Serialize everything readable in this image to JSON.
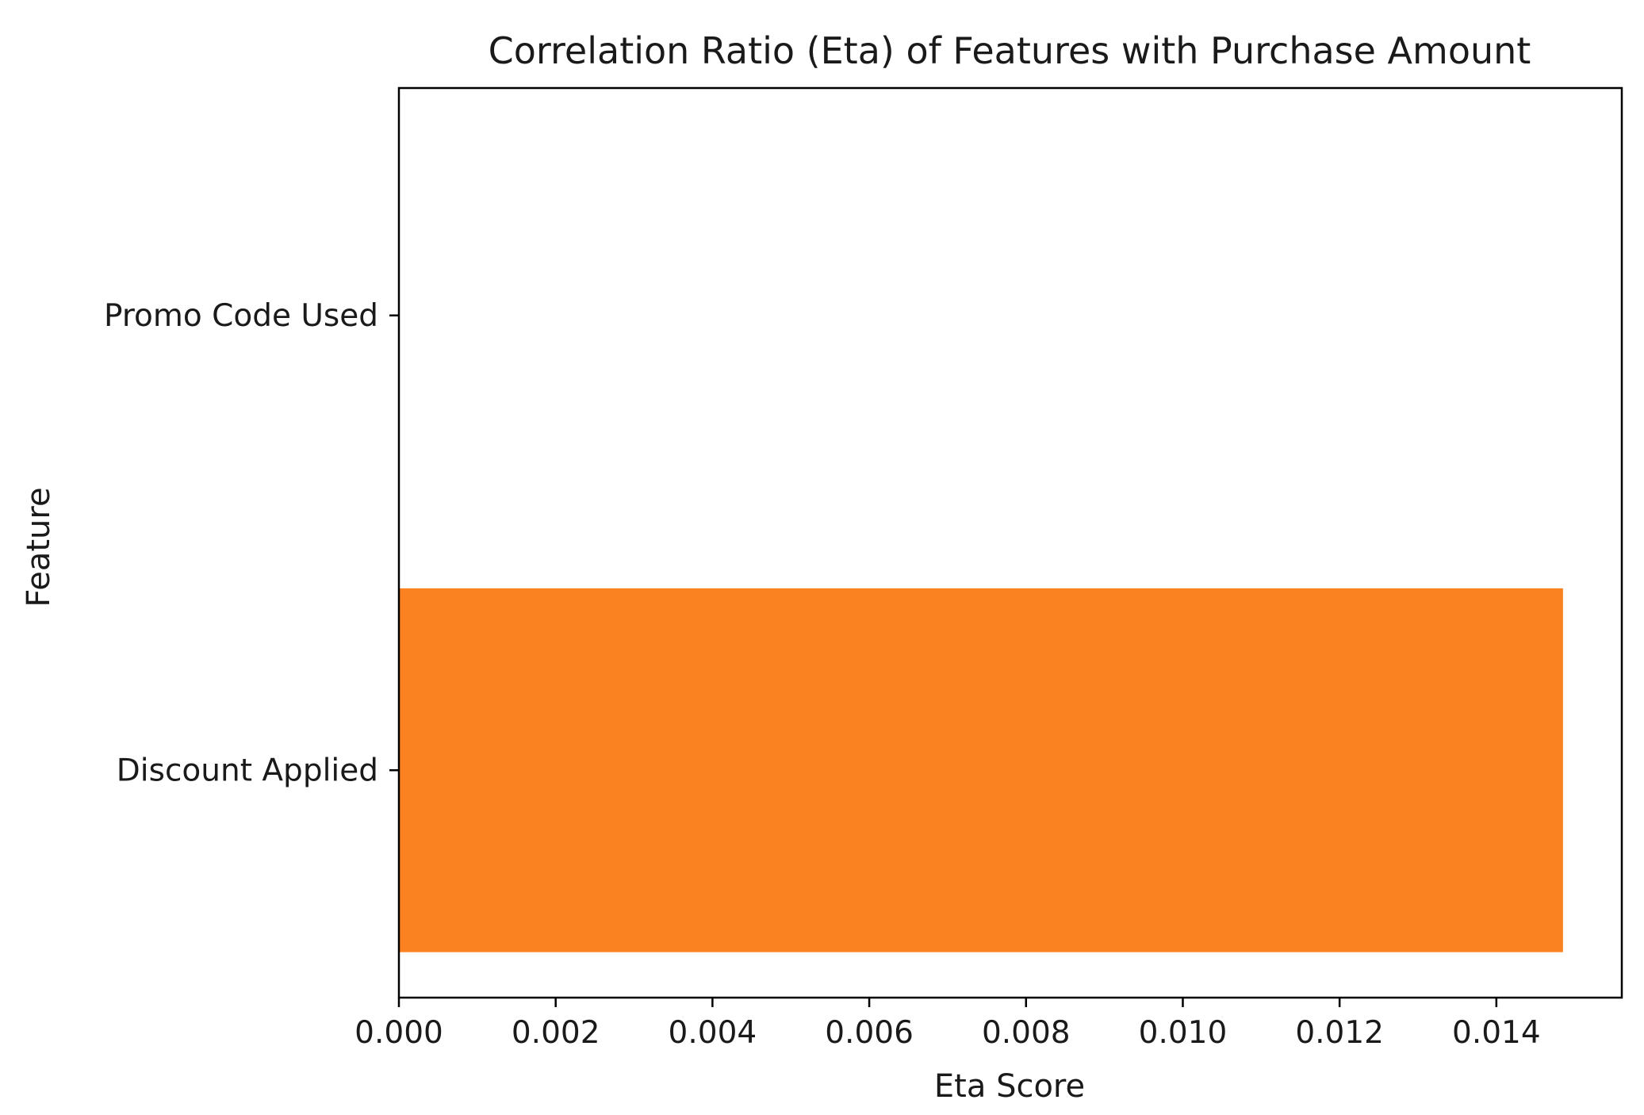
{
  "chart_data": {
    "type": "bar",
    "orientation": "horizontal",
    "title": "Correlation Ratio (Eta) of Features with Purchase Amount",
    "xlabel": "Eta Score",
    "ylabel": "Feature",
    "categories": [
      "Discount Applied",
      "Promo Code Used"
    ],
    "values": [
      0.01485,
      0.0
    ],
    "xlim": [
      0,
      0.0156
    ],
    "xticks": [
      "0.000",
      "0.002",
      "0.004",
      "0.006",
      "0.008",
      "0.010",
      "0.012",
      "0.014"
    ],
    "grid": false,
    "legend": false,
    "colors": {
      "bar": "#fb8220",
      "axes": "#000000",
      "text": "#1a1a1a",
      "background": "#ffffff"
    }
  }
}
